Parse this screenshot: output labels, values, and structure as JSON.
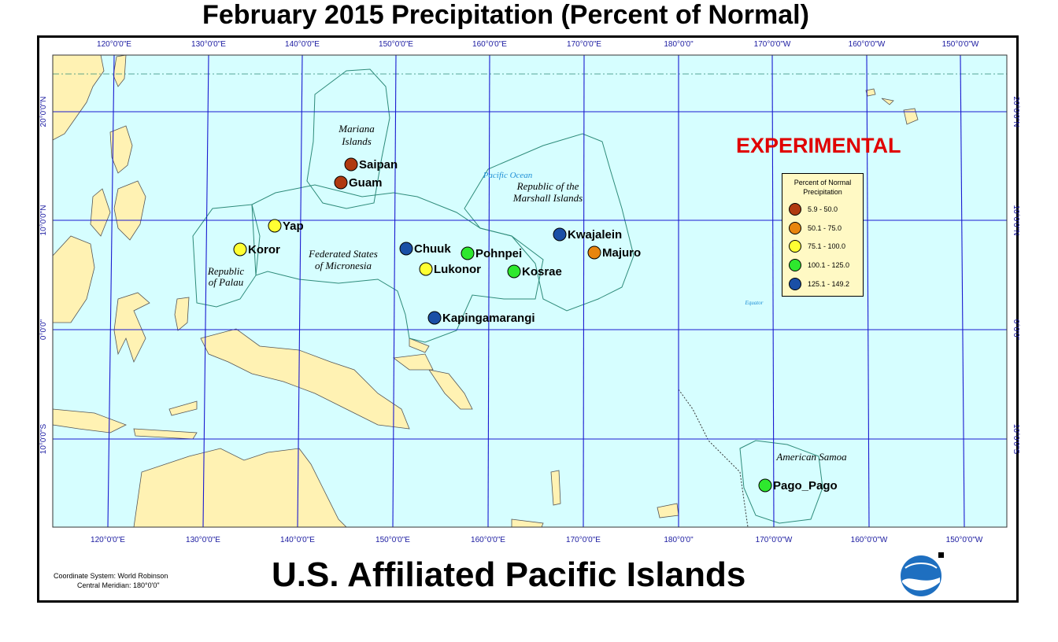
{
  "title": "February 2015 Precipitation (Percent of Normal)",
  "subtitle": "U.S. Affiliated Pacific Islands",
  "experimental": "EXPERIMENTAL",
  "coordinate_system": "Coordinate System: World Robinson",
  "central_meridian": "Central Meridian: 180°0'0\"",
  "map": {
    "lon_labels": [
      "120°0'0\"E",
      "130°0'0\"E",
      "140°0'0\"E",
      "150°0'0\"E",
      "160°0'0\"E",
      "170°0'0\"E",
      "180°0'0\"",
      "170°0'0\"W",
      "160°0'0\"W",
      "150°0'0\"W"
    ],
    "lat_labels": [
      "20°0'0\"N",
      "10°0'0\"N",
      "0°0'0\"",
      "10°0'0\"S"
    ],
    "regions": {
      "mariana": [
        "Mariana",
        "Islands"
      ],
      "micronesia": [
        "Federated States",
        "of Micronesia"
      ],
      "palau": [
        "Republic",
        "of Palau"
      ],
      "marshall": [
        "Republic of the",
        "Marshall Islands"
      ],
      "samoa": "American Samoa"
    },
    "ocean_label": "Pacific Ocean",
    "equator_label": "Equator"
  },
  "legend": {
    "title_line1": "Percent of Normal",
    "title_line2": "Precipitation",
    "classes": [
      {
        "range": "5.9 - 50.0",
        "color": "#b03a10"
      },
      {
        "range": "50.1 - 75.0",
        "color": "#e8850e"
      },
      {
        "range": "75.1 - 100.0",
        "color": "#ffff33"
      },
      {
        "range": "100.1 - 125.0",
        "color": "#2ee82e"
      },
      {
        "range": "125.1 - 149.2",
        "color": "#1a4fa6"
      }
    ]
  },
  "stations": [
    {
      "name": "Saipan",
      "class": 0
    },
    {
      "name": "Guam",
      "class": 0
    },
    {
      "name": "Yap",
      "class": 2
    },
    {
      "name": "Koror",
      "class": 2
    },
    {
      "name": "Chuuk",
      "class": 4
    },
    {
      "name": "Pohnpei",
      "class": 3
    },
    {
      "name": "Lukonor",
      "class": 2
    },
    {
      "name": "Kosrae",
      "class": 3
    },
    {
      "name": "Kwajalein",
      "class": 4
    },
    {
      "name": "Majuro",
      "class": 1
    },
    {
      "name": "Kapingamarangi",
      "class": 4
    },
    {
      "name": "Pago_Pago",
      "class": 3
    }
  ]
}
